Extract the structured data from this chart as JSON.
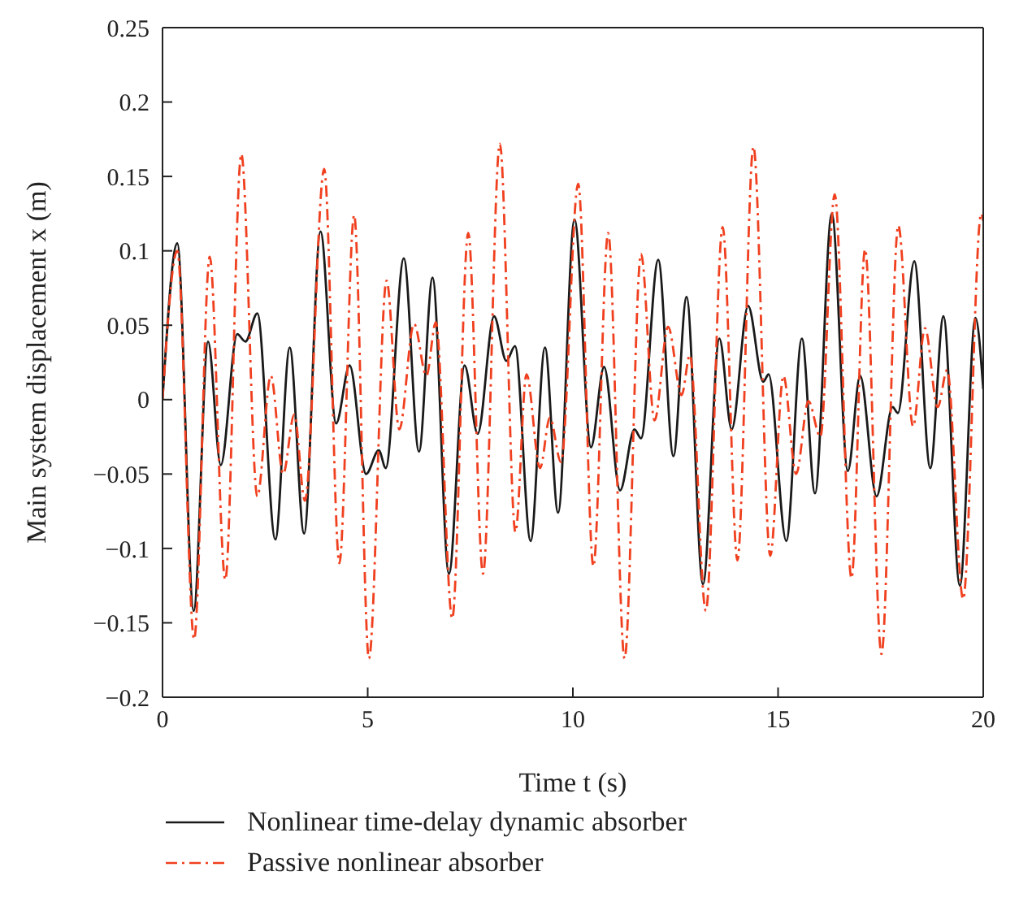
{
  "chart_data": {
    "type": "line",
    "xlabel": "Time t (s)",
    "ylabel": "Main system displacement x (m)",
    "xlim": [
      0,
      20
    ],
    "xticks": [
      0,
      5,
      10,
      15,
      20
    ],
    "ylim": [
      -0.2,
      0.25
    ],
    "yticks": [
      {
        "value": -0.2,
        "label": "−0.2"
      },
      {
        "value": -0.15,
        "label": "−0.15"
      },
      {
        "value": -0.1,
        "label": "−0.1"
      },
      {
        "value": -0.05,
        "label": "−0.05"
      },
      0,
      0.05,
      0.1,
      0.15,
      0.2,
      0.25
    ],
    "legend": "bottom",
    "marker": "none",
    "series": [
      {
        "name": "Nonlinear time-delay dynamic absorber",
        "color": "#1a1a1a",
        "line_style": "solid",
        "x": [
          0,
          0.36,
          0.76,
          1.11,
          1.42,
          1.82,
          2.02,
          2.31,
          2.75,
          3.1,
          3.45,
          3.85,
          4.23,
          4.56,
          4.96,
          5.27,
          5.44,
          5.88,
          6.25,
          6.58,
          6.98,
          7.36,
          7.68,
          8.08,
          8.38,
          8.59,
          8.97,
          9.32,
          9.64,
          10.04,
          10.44,
          10.76,
          11.15,
          11.5,
          11.66,
          12.08,
          12.45,
          12.77,
          13.17,
          13.57,
          13.87,
          14.27,
          14.64,
          14.77,
          15.2,
          15.58,
          15.9,
          16.31,
          16.7,
          17.0,
          17.4,
          17.79,
          17.92,
          18.32,
          18.71,
          19.03,
          19.43,
          19.81,
          20
        ],
        "values": [
          0,
          0.105,
          -0.142,
          0.039,
          -0.044,
          0.044,
          0.039,
          0.058,
          -0.094,
          0.035,
          -0.09,
          0.113,
          -0.016,
          0.023,
          -0.05,
          -0.034,
          -0.046,
          0.095,
          -0.035,
          0.082,
          -0.117,
          0.023,
          -0.023,
          0.056,
          0.026,
          0.036,
          -0.095,
          0.035,
          -0.076,
          0.121,
          -0.032,
          0.022,
          -0.061,
          -0.02,
          -0.026,
          0.094,
          -0.038,
          0.069,
          -0.124,
          0.041,
          -0.02,
          0.063,
          0.012,
          0.017,
          -0.095,
          0.041,
          -0.063,
          0.125,
          -0.048,
          0.016,
          -0.065,
          -0.005,
          -0.009,
          0.093,
          -0.046,
          0.056,
          -0.125,
          0.055,
          0.007
        ]
      },
      {
        "name": "Passive nonlinear absorber",
        "color": "#f0401f",
        "line_style": "dashdot",
        "x": [
          0,
          0.36,
          0.77,
          1.15,
          1.53,
          1.92,
          2.31,
          2.64,
          2.94,
          3.21,
          3.47,
          3.94,
          4.31,
          4.67,
          5.03,
          5.46,
          5.77,
          6.13,
          6.43,
          6.66,
          7.06,
          7.45,
          7.81,
          8.22,
          8.6,
          8.87,
          9.2,
          9.44,
          9.71,
          10.13,
          10.5,
          10.86,
          11.26,
          11.66,
          11.99,
          12.32,
          12.65,
          12.85,
          13.24,
          13.65,
          14.01,
          14.4,
          14.81,
          15.13,
          15.44,
          15.74,
          16.03,
          16.38,
          16.79,
          17.12,
          17.52,
          17.93,
          18.29,
          18.58,
          18.89,
          19.12,
          19.51,
          19.95,
          20
        ],
        "values": [
          0,
          0.1,
          -0.161,
          0.096,
          -0.121,
          0.165,
          -0.065,
          0.016,
          -0.05,
          -0.01,
          -0.068,
          0.155,
          -0.11,
          0.124,
          -0.174,
          0.08,
          -0.02,
          0.051,
          0.016,
          0.052,
          -0.147,
          0.112,
          -0.117,
          0.172,
          -0.089,
          0.017,
          -0.046,
          -0.012,
          -0.042,
          0.145,
          -0.112,
          0.112,
          -0.174,
          0.098,
          -0.014,
          0.049,
          0.003,
          0.03,
          -0.142,
          0.116,
          -0.108,
          0.17,
          -0.105,
          0.016,
          -0.05,
          -0.001,
          -0.025,
          0.138,
          -0.12,
          0.101,
          -0.171,
          0.117,
          -0.018,
          0.048,
          -0.005,
          0.02,
          -0.134,
          0.125,
          0.12
        ]
      }
    ]
  }
}
